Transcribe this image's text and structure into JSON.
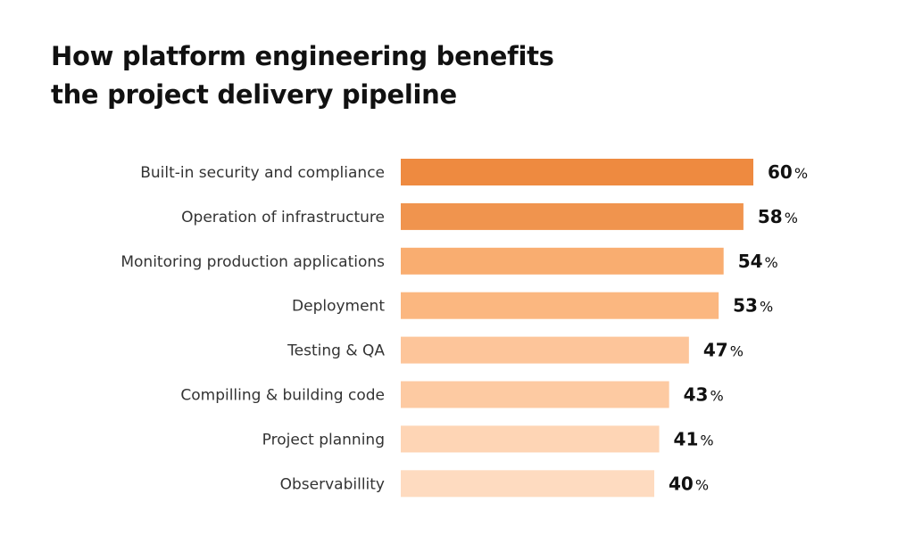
{
  "chart_data": {
    "type": "bar",
    "orientation": "horizontal",
    "title": [
      "How platform engineering benefits",
      "the project delivery pipeline"
    ],
    "categories": [
      "Built-in security and compliance",
      "Operation of infrastructure",
      "Monitoring production applications",
      "Deployment",
      "Testing & QA",
      "Compilling & building code",
      "Project planning",
      "Observabillity"
    ],
    "values": [
      60,
      58,
      54,
      53,
      47,
      43,
      41,
      40
    ],
    "value_suffix": "%",
    "colors": [
      "#EE8A40",
      "#F0944E",
      "#F9AD70",
      "#FBB780",
      "#FDC59A",
      "#FDCAA2",
      "#FED5B5",
      "#FEDBC0"
    ],
    "grid": false,
    "legend": "none"
  }
}
